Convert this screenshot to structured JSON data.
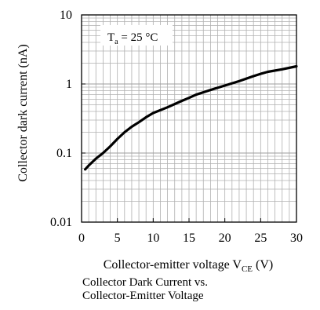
{
  "chart_data": {
    "type": "line",
    "title": "",
    "annotation": {
      "base": "T",
      "sub": "a",
      "rest": " = 25 °C"
    },
    "xlabel": {
      "base": "Collector-emitter voltage V",
      "sub": "CE",
      "rest": " (V)"
    },
    "ylabel": "Collector dark current (nA)",
    "xlim": [
      0,
      30
    ],
    "ylim": [
      0.01,
      10
    ],
    "yscale": "log",
    "grid": true,
    "x_ticks": [
      "0",
      "5",
      "10",
      "15",
      "20",
      "25",
      "30"
    ],
    "y_ticks": [
      "0.01",
      "0.1",
      "1",
      "10"
    ],
    "series": [
      {
        "x": [
          0.5,
          1,
          1.5,
          2,
          3,
          4,
          5,
          6,
          7,
          8,
          9,
          10,
          12,
          14,
          15,
          16,
          18,
          20,
          22,
          24,
          25,
          26,
          28,
          30
        ],
        "y": [
          0.058,
          0.066,
          0.074,
          0.083,
          0.1,
          0.125,
          0.16,
          0.2,
          0.24,
          0.28,
          0.33,
          0.38,
          0.46,
          0.57,
          0.63,
          0.7,
          0.82,
          0.95,
          1.1,
          1.3,
          1.4,
          1.5,
          1.63,
          1.8
        ]
      }
    ]
  },
  "caption": {
    "line1": "Collector  Dark  Current vs.",
    "line2": "Collector-Emitter Voltage"
  }
}
